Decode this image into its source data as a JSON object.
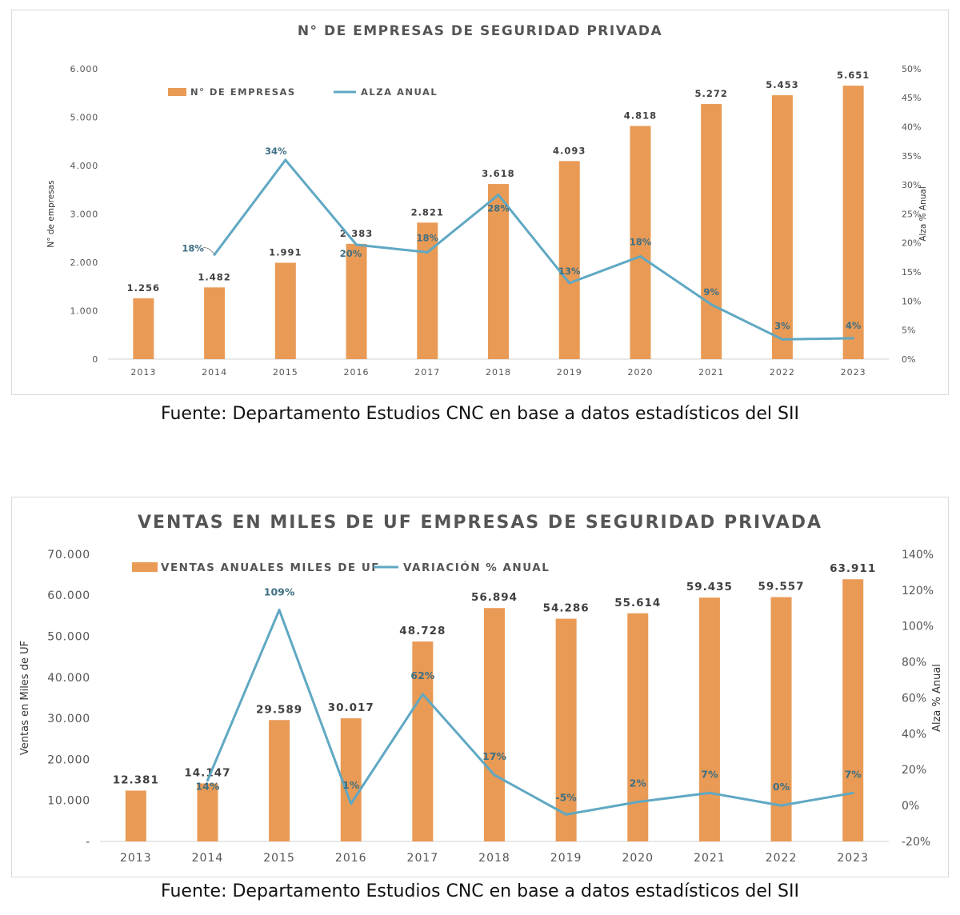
{
  "colors": {
    "bar": "#E99A55",
    "line": "#5FA8C3",
    "label": "#3F6F83",
    "text": "#555555",
    "axis": "#d0d0d0"
  },
  "sources": [
    "Fuente: Departamento Estudios CNC en base a datos estadísticos del SII",
    "Fuente: Departamento Estudios CNC en base a datos estadísticos del SII"
  ],
  "chart_data": [
    {
      "type": "bar",
      "title": "N° DE EMPRESAS DE SEGURIDAD PRIVADA",
      "ylabel": "N° de empresas",
      "y2label": "Alza % Anual",
      "categories": [
        "2013",
        "2014",
        "2015",
        "2016",
        "2017",
        "2018",
        "2019",
        "2020",
        "2021",
        "2022",
        "2023"
      ],
      "ylim": [
        0,
        6000
      ],
      "y_ticks": [
        0,
        1000,
        2000,
        3000,
        4000,
        5000,
        6000
      ],
      "y_tick_labels": [
        "0",
        "1.000",
        "2.000",
        "3.000",
        "4.000",
        "5.000",
        "6.000"
      ],
      "y2lim": [
        0,
        50
      ],
      "y2_ticks": [
        0,
        5,
        10,
        15,
        20,
        25,
        30,
        35,
        40,
        45,
        50
      ],
      "y2_tick_labels": [
        "0%",
        "5%",
        "10%",
        "15%",
        "20%",
        "25%",
        "30%",
        "35%",
        "40%",
        "45%",
        "50%"
      ],
      "legend_position": "top-left",
      "series": [
        {
          "name": "N° DE EMPRESAS",
          "kind": "bar",
          "axis": "left",
          "values": [
            1256,
            1482,
            1991,
            2383,
            2821,
            3618,
            4093,
            4818,
            5272,
            5453,
            5651
          ],
          "labels": [
            "1.256",
            "1.482",
            "1.991",
            "2.383",
            "2.821",
            "3.618",
            "4.093",
            "4.818",
            "5.272",
            "5.453",
            "5.651"
          ]
        },
        {
          "name": "ALZA ANUAL",
          "kind": "line",
          "axis": "right",
          "values": [
            null,
            18,
            34.3,
            19.7,
            18.4,
            28.3,
            13.1,
            17.7,
            9.4,
            3.4,
            3.6
          ],
          "labels": [
            null,
            "18%",
            "34%",
            "20%",
            "18%",
            "28%",
            "13%",
            "18%",
            "9%",
            "3%",
            "4%"
          ]
        }
      ]
    },
    {
      "type": "bar",
      "title": "VENTAS EN MILES DE UF EMPRESAS DE SEGURIDAD PRIVADA",
      "ylabel": "Ventas en Miles de UF",
      "y2label": "Alza % Anual",
      "categories": [
        "2013",
        "2014",
        "2015",
        "2016",
        "2017",
        "2018",
        "2019",
        "2020",
        "2021",
        "2022",
        "2023"
      ],
      "ylim": [
        0,
        70000
      ],
      "y_ticks": [
        0,
        10000,
        20000,
        30000,
        40000,
        50000,
        60000,
        70000
      ],
      "y_tick_labels": [
        "-",
        "10.000",
        "20.000",
        "30.000",
        "40.000",
        "50.000",
        "60.000",
        "70.000"
      ],
      "y2lim": [
        -20,
        140
      ],
      "y2_ticks": [
        -20,
        0,
        20,
        40,
        60,
        80,
        100,
        120,
        140
      ],
      "y2_tick_labels": [
        "-20%",
        "0%",
        "20%",
        "40%",
        "60%",
        "80%",
        "100%",
        "120%",
        "140%"
      ],
      "legend_position": "top-left",
      "series": [
        {
          "name": "VENTAS ANUALES MILES DE UF",
          "kind": "bar",
          "axis": "left",
          "values": [
            12381,
            14147,
            29589,
            30017,
            48728,
            56894,
            54286,
            55614,
            59435,
            59557,
            63911
          ],
          "labels": [
            "12.381",
            "14.147",
            "29.589",
            "30.017",
            "48.728",
            "56.894",
            "54.286",
            "55.614",
            "59.435",
            "59.557",
            "63.911"
          ]
        },
        {
          "name": "VARIACIÓN % ANUAL",
          "kind": "line",
          "axis": "right",
          "values": [
            null,
            14,
            109,
            1,
            62,
            17,
            -5,
            2,
            7,
            0,
            7
          ],
          "labels": [
            null,
            "14%",
            "109%",
            "1%",
            "62%",
            "17%",
            "-5%",
            "2%",
            "7%",
            "0%",
            "7%"
          ]
        }
      ]
    }
  ]
}
